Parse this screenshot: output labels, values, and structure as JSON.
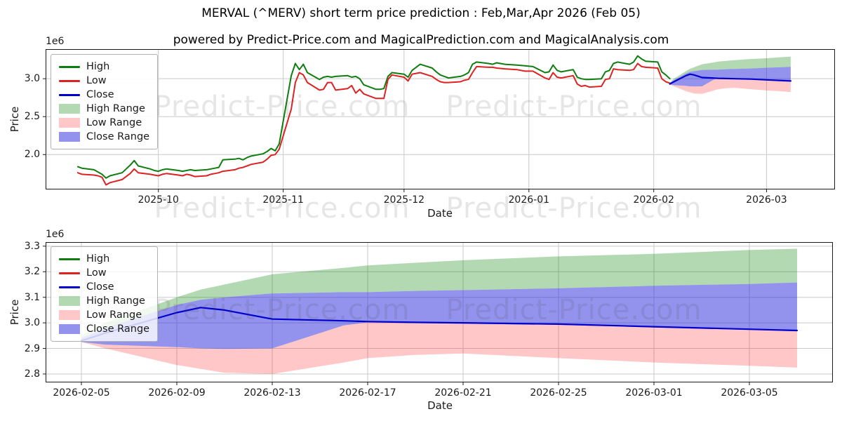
{
  "figure": {
    "title": "MERVAL (^MERV) short term price prediction : Feb,Mar,Apr 2026 (Feb 05)",
    "subtitle": "powered by Predict-Price.com and MagicalPrediction.com and MagicalAnalysis.com"
  },
  "watermark": {
    "text": "Predict-Price.com"
  },
  "colors": {
    "high_line": "#0f7d0f",
    "low_line": "#dd2222",
    "close_line": "#0000cc",
    "high_band": "rgba(0,128,0,0.30)",
    "low_band": "rgba(255,30,30,0.25)",
    "close_band": "rgba(40,40,220,0.50)",
    "grid": "#c9c9c9",
    "spine": "#1a1a1a"
  },
  "legend": {
    "items": [
      {
        "label": "High",
        "swatch": "line",
        "color": "#0f7d0f"
      },
      {
        "label": "Low",
        "swatch": "line",
        "color": "#dd2222"
      },
      {
        "label": "Close",
        "swatch": "line",
        "color": "#0000cc"
      },
      {
        "label": "High Range",
        "swatch": "patch",
        "color": "rgba(0,128,0,0.30)"
      },
      {
        "label": "Low Range",
        "swatch": "patch",
        "color": "rgba(255,30,30,0.25)"
      },
      {
        "label": "Close Range",
        "swatch": "patch",
        "color": "rgba(40,40,220,0.50)"
      }
    ]
  },
  "chart_data": [
    {
      "type": "line",
      "name": "history-and-prediction",
      "ylabel": "Price",
      "xlabel": "Date",
      "offset_text": "1e6",
      "unit": "1e6",
      "grid": true,
      "legend_position": "upper left",
      "xlim": [
        "2025-09-03",
        "2026-03-18"
      ],
      "ylim": [
        1.54,
        3.39
      ],
      "yticks": [
        "2.0",
        "2.5",
        "3.0"
      ],
      "xticks": [
        {
          "date": "2025-10-01",
          "label": "2025-10"
        },
        {
          "date": "2025-11-01",
          "label": "2025-11"
        },
        {
          "date": "2025-12-01",
          "label": "2025-12"
        },
        {
          "date": "2026-01-01",
          "label": "2026-01"
        },
        {
          "date": "2026-02-01",
          "label": "2026-02"
        },
        {
          "date": "2026-03-01",
          "label": "2026-03"
        }
      ],
      "history": {
        "dates": [
          "2025-09-11",
          "2025-09-12",
          "2025-09-15",
          "2025-09-16",
          "2025-09-17",
          "2025-09-18",
          "2025-09-19",
          "2025-09-22",
          "2025-09-23",
          "2025-09-24",
          "2025-09-25",
          "2025-09-26",
          "2025-09-29",
          "2025-09-30",
          "2025-10-01",
          "2025-10-02",
          "2025-10-03",
          "2025-10-06",
          "2025-10-07",
          "2025-10-08",
          "2025-10-09",
          "2025-10-10",
          "2025-10-13",
          "2025-10-14",
          "2025-10-15",
          "2025-10-16",
          "2025-10-17",
          "2025-10-20",
          "2025-10-21",
          "2025-10-22",
          "2025-10-23",
          "2025-10-24",
          "2025-10-27",
          "2025-10-28",
          "2025-10-29",
          "2025-10-30",
          "2025-10-31",
          "2025-11-03",
          "2025-11-04",
          "2025-11-05",
          "2025-11-06",
          "2025-11-07",
          "2025-11-10",
          "2025-11-11",
          "2025-11-12",
          "2025-11-13",
          "2025-11-14",
          "2025-11-17",
          "2025-11-18",
          "2025-11-19",
          "2025-11-20",
          "2025-11-21",
          "2025-11-24",
          "2025-11-25",
          "2025-11-26",
          "2025-11-27",
          "2025-11-28",
          "2025-12-01",
          "2025-12-02",
          "2025-12-03",
          "2025-12-04",
          "2025-12-05",
          "2025-12-08",
          "2025-12-09",
          "2025-12-10",
          "2025-12-11",
          "2025-12-12",
          "2025-12-15",
          "2025-12-16",
          "2025-12-17",
          "2025-12-18",
          "2025-12-19",
          "2025-12-22",
          "2025-12-23",
          "2025-12-24",
          "2025-12-26",
          "2025-12-29",
          "2025-12-31",
          "2026-01-02",
          "2026-01-05",
          "2026-01-06",
          "2026-01-07",
          "2026-01-08",
          "2026-01-09",
          "2026-01-12",
          "2026-01-13",
          "2026-01-14",
          "2026-01-15",
          "2026-01-16",
          "2026-01-19",
          "2026-01-20",
          "2026-01-21",
          "2026-01-22",
          "2026-01-23",
          "2026-01-26",
          "2026-01-27",
          "2026-01-28",
          "2026-01-29",
          "2026-01-30",
          "2026-02-02",
          "2026-02-03",
          "2026-02-04",
          "2026-02-05"
        ],
        "high": [
          1.84,
          1.82,
          1.8,
          1.77,
          1.74,
          1.69,
          1.72,
          1.76,
          1.81,
          1.86,
          1.92,
          1.85,
          1.81,
          1.79,
          1.78,
          1.8,
          1.81,
          1.79,
          1.78,
          1.79,
          1.8,
          1.79,
          1.8,
          1.81,
          1.82,
          1.83,
          1.93,
          1.94,
          1.95,
          1.93,
          1.96,
          1.98,
          2.01,
          2.04,
          2.08,
          2.05,
          2.14,
          3.04,
          3.2,
          3.12,
          3.19,
          3.08,
          2.99,
          3.02,
          3.03,
          3.02,
          3.03,
          3.04,
          3.02,
          3.03,
          3.0,
          2.92,
          2.86,
          2.86,
          2.87,
          3.03,
          3.08,
          3.06,
          3.02,
          3.11,
          3.15,
          3.19,
          3.14,
          3.09,
          3.05,
          3.03,
          3.01,
          3.03,
          3.05,
          3.08,
          3.19,
          3.22,
          3.2,
          3.19,
          3.21,
          3.19,
          3.18,
          3.17,
          3.16,
          3.08,
          3.09,
          3.18,
          3.11,
          3.09,
          3.12,
          3.02,
          3.0,
          2.99,
          2.99,
          3.0,
          3.09,
          3.11,
          3.2,
          3.22,
          3.19,
          3.22,
          3.3,
          3.26,
          3.23,
          3.22,
          3.09,
          3.05,
          3.0
        ],
        "low": [
          1.76,
          1.74,
          1.73,
          1.72,
          1.7,
          1.6,
          1.63,
          1.67,
          1.71,
          1.75,
          1.81,
          1.76,
          1.74,
          1.73,
          1.72,
          1.74,
          1.75,
          1.73,
          1.72,
          1.74,
          1.73,
          1.71,
          1.72,
          1.74,
          1.75,
          1.76,
          1.78,
          1.8,
          1.82,
          1.83,
          1.85,
          1.87,
          1.9,
          1.94,
          1.99,
          2.0,
          2.07,
          2.6,
          2.95,
          3.08,
          3.05,
          2.95,
          2.85,
          2.86,
          2.95,
          2.95,
          2.85,
          2.87,
          2.91,
          2.81,
          2.86,
          2.8,
          2.74,
          2.74,
          2.74,
          2.99,
          3.05,
          3.02,
          2.97,
          3.06,
          3.07,
          3.08,
          3.03,
          2.99,
          2.96,
          2.95,
          2.95,
          2.96,
          2.98,
          2.99,
          3.08,
          3.16,
          3.15,
          3.15,
          3.14,
          3.13,
          3.12,
          3.1,
          3.1,
          3.01,
          2.99,
          3.08,
          3.02,
          3.01,
          3.04,
          2.93,
          2.9,
          2.91,
          2.89,
          2.9,
          2.99,
          3.0,
          3.13,
          3.12,
          3.11,
          3.12,
          3.2,
          3.16,
          3.15,
          3.14,
          3.0,
          2.96,
          2.94
        ]
      },
      "prediction": {
        "dates": [
          "2026-02-05",
          "2026-02-06",
          "2026-02-09",
          "2026-02-10",
          "2026-02-11",
          "2026-02-13",
          "2026-02-16",
          "2026-02-17",
          "2026-02-19",
          "2026-02-21",
          "2026-02-25",
          "2026-03-01",
          "2026-03-05",
          "2026-03-07"
        ],
        "close": [
          2.93,
          2.96,
          3.04,
          3.06,
          3.05,
          3.015,
          3.008,
          3.005,
          3.002,
          3.0,
          2.995,
          2.985,
          2.975,
          2.97
        ],
        "high_top": [
          2.95,
          3.0,
          3.1,
          3.13,
          3.15,
          3.19,
          3.215,
          3.225,
          3.235,
          3.245,
          3.26,
          3.27,
          3.285,
          3.29
        ],
        "close_top": [
          2.94,
          2.98,
          3.07,
          3.09,
          3.1,
          3.115,
          3.12,
          3.12,
          3.125,
          3.128,
          3.135,
          3.145,
          3.152,
          3.158
        ],
        "close_bot": [
          2.925,
          2.915,
          2.905,
          2.9,
          2.898,
          2.9,
          2.99,
          3.002,
          2.999,
          2.997,
          2.992,
          2.982,
          2.972,
          2.967
        ],
        "low_bot": [
          2.925,
          2.9,
          2.835,
          2.82,
          2.805,
          2.8,
          2.845,
          2.862,
          2.875,
          2.88,
          2.862,
          2.845,
          2.832,
          2.825
        ]
      }
    },
    {
      "type": "line",
      "name": "prediction-detail",
      "ylabel": "Price",
      "xlabel": "Date",
      "offset_text": "1e6",
      "unit": "1e6",
      "grid": true,
      "legend_position": "upper left",
      "xlim": [
        "2026-02-03T12:00:00",
        "2026-03-08T12:00:00"
      ],
      "ylim": [
        2.767,
        3.316
      ],
      "yticks": [
        "2.8",
        "2.9",
        "3.0",
        "3.1",
        "3.2",
        "3.3"
      ],
      "xticks": [
        {
          "date": "2026-02-05",
          "label": "2026-02-05"
        },
        {
          "date": "2026-02-09",
          "label": "2026-02-09"
        },
        {
          "date": "2026-02-13",
          "label": "2026-02-13"
        },
        {
          "date": "2026-02-17",
          "label": "2026-02-17"
        },
        {
          "date": "2026-02-21",
          "label": "2026-02-21"
        },
        {
          "date": "2026-02-25",
          "label": "2026-02-25"
        },
        {
          "date": "2026-03-01",
          "label": "2026-03-01"
        },
        {
          "date": "2026-03-05",
          "label": "2026-03-05"
        }
      ],
      "prediction": {
        "dates": [
          "2026-02-05",
          "2026-02-06",
          "2026-02-09",
          "2026-02-10",
          "2026-02-11",
          "2026-02-13",
          "2026-02-16",
          "2026-02-17",
          "2026-02-19",
          "2026-02-21",
          "2026-02-25",
          "2026-03-01",
          "2026-03-05",
          "2026-03-07"
        ],
        "close": [
          2.93,
          2.96,
          3.04,
          3.06,
          3.05,
          3.015,
          3.008,
          3.005,
          3.002,
          3.0,
          2.995,
          2.985,
          2.975,
          2.97
        ],
        "high_top": [
          2.95,
          3.0,
          3.1,
          3.13,
          3.15,
          3.19,
          3.215,
          3.225,
          3.235,
          3.245,
          3.26,
          3.27,
          3.285,
          3.29
        ],
        "close_top": [
          2.94,
          2.98,
          3.07,
          3.09,
          3.1,
          3.115,
          3.12,
          3.12,
          3.125,
          3.128,
          3.135,
          3.145,
          3.152,
          3.158
        ],
        "close_bot": [
          2.925,
          2.915,
          2.905,
          2.9,
          2.898,
          2.9,
          2.99,
          3.002,
          2.999,
          2.997,
          2.992,
          2.982,
          2.972,
          2.967
        ],
        "low_bot": [
          2.925,
          2.9,
          2.835,
          2.82,
          2.805,
          2.8,
          2.845,
          2.862,
          2.875,
          2.88,
          2.862,
          2.845,
          2.832,
          2.825
        ]
      }
    }
  ]
}
